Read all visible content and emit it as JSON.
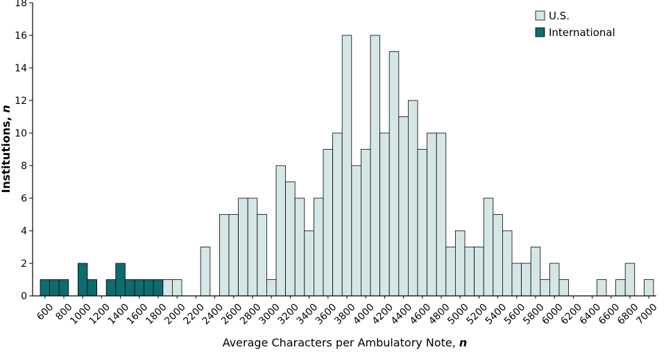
{
  "chart_data": {
    "type": "bar",
    "xlabel": "Average Characters per Ambulatory Note, ",
    "xlabel_var": "n",
    "ylabel": "Institutions, ",
    "ylabel_var": "n",
    "ylim": [
      0,
      18
    ],
    "yticks": [
      0,
      2,
      4,
      6,
      8,
      10,
      12,
      14,
      16,
      18
    ],
    "xticks": [
      600,
      800,
      1000,
      1200,
      1400,
      1600,
      1800,
      2000,
      2200,
      2400,
      2600,
      2800,
      3000,
      3200,
      3400,
      3600,
      3800,
      4000,
      4200,
      4400,
      4600,
      4800,
      5000,
      5200,
      5400,
      5600,
      5800,
      6000,
      6200,
      6400,
      6600,
      6800,
      7000
    ],
    "bin_width": 100,
    "x_start": 600,
    "legend_position": "top-right",
    "grid": false,
    "series": [
      {
        "name": "U.S.",
        "color": "#d5e6e6",
        "bins": [
          {
            "x": 1900,
            "value": 1
          },
          {
            "x": 2000,
            "value": 1
          },
          {
            "x": 2300,
            "value": 3
          },
          {
            "x": 2500,
            "value": 5
          },
          {
            "x": 2600,
            "value": 5
          },
          {
            "x": 2700,
            "value": 6
          },
          {
            "x": 2800,
            "value": 6
          },
          {
            "x": 2900,
            "value": 5
          },
          {
            "x": 3000,
            "value": 1
          },
          {
            "x": 3100,
            "value": 8
          },
          {
            "x": 3200,
            "value": 7
          },
          {
            "x": 3300,
            "value": 6
          },
          {
            "x": 3400,
            "value": 4
          },
          {
            "x": 3500,
            "value": 6
          },
          {
            "x": 3600,
            "value": 9
          },
          {
            "x": 3700,
            "value": 10
          },
          {
            "x": 3800,
            "value": 16
          },
          {
            "x": 3900,
            "value": 8
          },
          {
            "x": 4000,
            "value": 9
          },
          {
            "x": 4100,
            "value": 16
          },
          {
            "x": 4200,
            "value": 10
          },
          {
            "x": 4300,
            "value": 15
          },
          {
            "x": 4400,
            "value": 11
          },
          {
            "x": 4500,
            "value": 12
          },
          {
            "x": 4600,
            "value": 9
          },
          {
            "x": 4700,
            "value": 10
          },
          {
            "x": 4800,
            "value": 10
          },
          {
            "x": 4900,
            "value": 3
          },
          {
            "x": 5000,
            "value": 4
          },
          {
            "x": 5100,
            "value": 3
          },
          {
            "x": 5200,
            "value": 3
          },
          {
            "x": 5300,
            "value": 6
          },
          {
            "x": 5400,
            "value": 5
          },
          {
            "x": 5500,
            "value": 4
          },
          {
            "x": 5600,
            "value": 2
          },
          {
            "x": 5700,
            "value": 2
          },
          {
            "x": 5800,
            "value": 3
          },
          {
            "x": 5900,
            "value": 1
          },
          {
            "x": 6000,
            "value": 2
          },
          {
            "x": 6100,
            "value": 1
          },
          {
            "x": 6500,
            "value": 1
          },
          {
            "x": 6700,
            "value": 1
          },
          {
            "x": 6800,
            "value": 2
          },
          {
            "x": 7000,
            "value": 1
          }
        ]
      },
      {
        "name": "International",
        "color": "#0e6b6e",
        "bins": [
          {
            "x": 600,
            "value": 1
          },
          {
            "x": 700,
            "value": 1
          },
          {
            "x": 800,
            "value": 1
          },
          {
            "x": 1000,
            "value": 2
          },
          {
            "x": 1100,
            "value": 1
          },
          {
            "x": 1300,
            "value": 1
          },
          {
            "x": 1400,
            "value": 2
          },
          {
            "x": 1500,
            "value": 1
          },
          {
            "x": 1600,
            "value": 1
          },
          {
            "x": 1700,
            "value": 1
          },
          {
            "x": 1800,
            "value": 1
          }
        ]
      }
    ]
  }
}
